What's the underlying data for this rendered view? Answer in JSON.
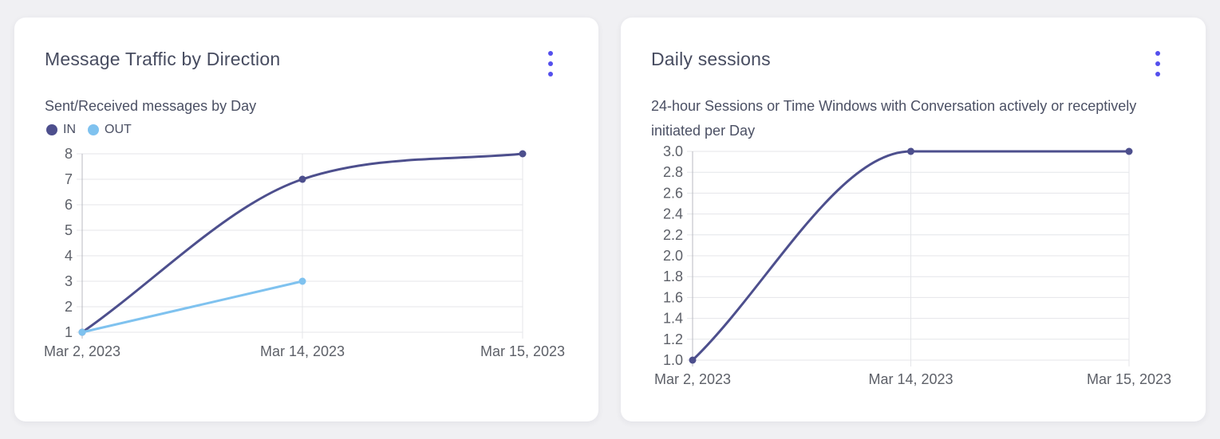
{
  "page": {
    "background_color": "#f0f0f3",
    "card_color": "#ffffff"
  },
  "colors": {
    "accent_menu": "#544fed",
    "grid": "#e4e5e9",
    "axis": "#b9bac1",
    "tick_text": "#5d6068",
    "title_text": "#474c60"
  },
  "icons": {
    "card_menu": "kebab-menu-icon",
    "legend_swatch": "legend-dot-icon"
  },
  "chart_data": [
    {
      "type": "line",
      "title": "Message Traffic by Direction",
      "subtitle": "Sent/Received messages by Day",
      "categories": [
        "Mar 2, 2023",
        "Mar 14, 2023",
        "Mar 15, 2023"
      ],
      "series": [
        {
          "name": "IN",
          "color": "#4d4f8d",
          "values": [
            1,
            7,
            8
          ]
        },
        {
          "name": "OUT",
          "color": "#7fc2ef",
          "values": [
            1,
            3,
            null
          ]
        }
      ],
      "ylim": [
        1,
        8
      ],
      "yticks": [
        "1",
        "2",
        "3",
        "4",
        "5",
        "6",
        "7",
        "8"
      ],
      "xlabel": "",
      "ylabel": "",
      "grid": true,
      "legend_position": "top-left",
      "curve": "smooth"
    },
    {
      "type": "line",
      "title": "Daily sessions",
      "subtitle": "24-hour Sessions or Time Windows with Conversation actively or receptively initiated per Day",
      "categories": [
        "Mar 2, 2023",
        "Mar 14, 2023",
        "Mar 15, 2023"
      ],
      "series": [
        {
          "name": "Daily sessions",
          "color": "#4d4f8d",
          "values": [
            1.0,
            3.0,
            3.0
          ]
        }
      ],
      "ylim": [
        1.0,
        3.0
      ],
      "yticks": [
        "1.0",
        "1.2",
        "1.4",
        "1.6",
        "1.8",
        "2.0",
        "2.2",
        "2.4",
        "2.6",
        "2.8",
        "3.0"
      ],
      "xlabel": "",
      "ylabel": "",
      "grid": true,
      "legend_position": "none",
      "curve": "smooth"
    }
  ]
}
